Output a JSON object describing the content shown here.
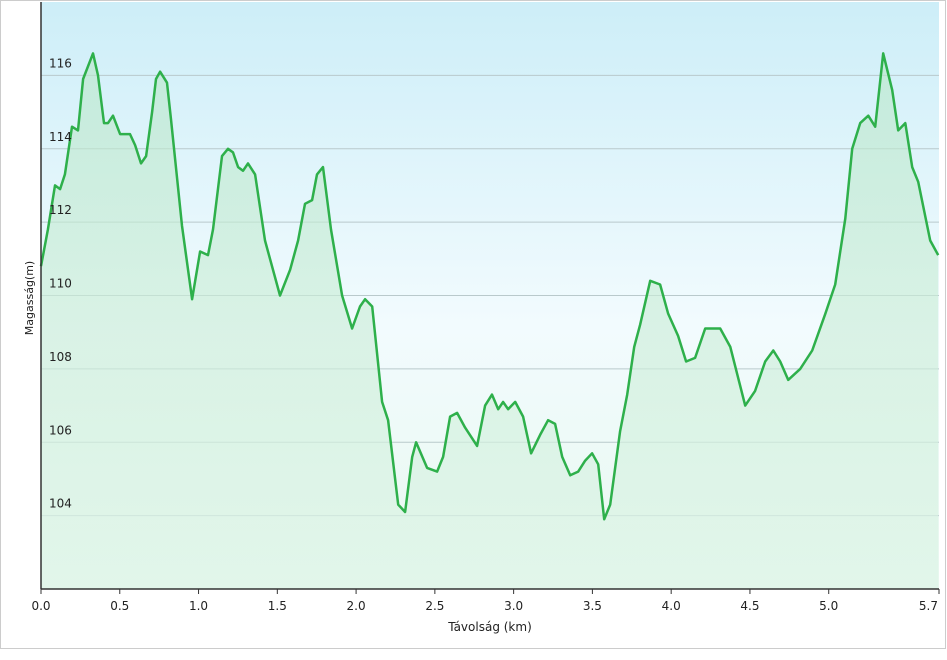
{
  "chart_data": {
    "type": "area",
    "x_label": "Távolság  (km)",
    "y_label": "Magasság(m)",
    "x": [
      0,
      0.044,
      0.089,
      0.121,
      0.152,
      0.197,
      0.235,
      0.267,
      0.33,
      0.362,
      0.4,
      0.425,
      0.457,
      0.502,
      0.533,
      0.565,
      0.597,
      0.635,
      0.667,
      0.705,
      0.73,
      0.756,
      0.8,
      0.825,
      0.895,
      0.959,
      1.01,
      1.06,
      1.092,
      1.149,
      1.187,
      1.219,
      1.251,
      1.282,
      1.314,
      1.359,
      1.422,
      1.517,
      1.581,
      1.632,
      1.676,
      1.721,
      1.752,
      1.79,
      1.841,
      1.911,
      1.975,
      2.025,
      2.057,
      2.102,
      2.165,
      2.203,
      2.267,
      2.311,
      2.356,
      2.381,
      2.451,
      2.514,
      2.552,
      2.597,
      2.641,
      2.692,
      2.768,
      2.819,
      2.863,
      2.902,
      2.933,
      2.965,
      3.01,
      3.06,
      3.111,
      3.168,
      3.219,
      3.263,
      3.308,
      3.359,
      3.41,
      3.454,
      3.498,
      3.537,
      3.575,
      3.613,
      3.676,
      3.721,
      3.765,
      3.803,
      3.867,
      3.93,
      3.981,
      4.044,
      4.095,
      4.152,
      4.216,
      4.311,
      4.375,
      4.47,
      4.533,
      4.597,
      4.648,
      4.692,
      4.743,
      4.819,
      4.895,
      4.978,
      5.041,
      5.105,
      5.149,
      5.2,
      5.251,
      5.295,
      5.346,
      5.403,
      5.441,
      5.486,
      5.53,
      5.568,
      5.644,
      5.695
    ],
    "series": [
      {
        "name": "Magasság",
        "color": "#2eb04b",
        "values": [
          110.8,
          111.8,
          113.0,
          112.9,
          113.3,
          114.6,
          114.5,
          115.9,
          116.6,
          116.0,
          114.7,
          114.7,
          114.9,
          114.4,
          114.4,
          114.4,
          114.1,
          113.6,
          113.8,
          115.0,
          115.9,
          116.1,
          115.8,
          114.8,
          111.9,
          109.9,
          111.2,
          111.1,
          111.8,
          113.8,
          114.0,
          113.9,
          113.5,
          113.4,
          113.6,
          113.3,
          111.5,
          110.0,
          110.7,
          111.5,
          112.5,
          112.6,
          113.3,
          113.5,
          111.8,
          110.0,
          109.1,
          109.7,
          109.9,
          109.7,
          107.1,
          106.6,
          104.3,
          104.1,
          105.6,
          106.0,
          105.3,
          105.2,
          105.6,
          106.7,
          106.8,
          106.4,
          105.9,
          107.0,
          107.3,
          106.9,
          107.1,
          106.9,
          107.1,
          106.7,
          105.7,
          106.2,
          106.6,
          106.5,
          105.6,
          105.1,
          105.2,
          105.5,
          105.7,
          105.4,
          103.9,
          104.3,
          106.3,
          107.3,
          108.6,
          109.2,
          110.4,
          110.3,
          109.5,
          108.9,
          108.2,
          108.3,
          109.1,
          109.1,
          108.6,
          107.0,
          107.4,
          108.2,
          108.5,
          108.2,
          107.7,
          108.0,
          108.5,
          109.5,
          110.3,
          112.1,
          114.0,
          114.7,
          114.9,
          114.6,
          116.6,
          115.6,
          114.5,
          114.7,
          113.5,
          113.1,
          111.5,
          111.1
        ]
      }
    ],
    "xlim": [
      0,
      5.7
    ],
    "ylim": [
      102,
      118
    ],
    "xticks": [
      {
        "value": 0,
        "label": "0.0"
      },
      0.5,
      {
        "value": 1,
        "label": "1.0"
      },
      1.5,
      {
        "value": 2,
        "label": "2.0"
      },
      2.5,
      {
        "value": 3,
        "label": "3.0"
      },
      3.5,
      {
        "value": 4,
        "label": "4.0"
      },
      4.5,
      {
        "value": 5,
        "label": "5.0"
      },
      5.7
    ],
    "yticks": [
      104,
      106,
      108,
      110,
      112,
      114,
      116
    ],
    "grid": true
  }
}
